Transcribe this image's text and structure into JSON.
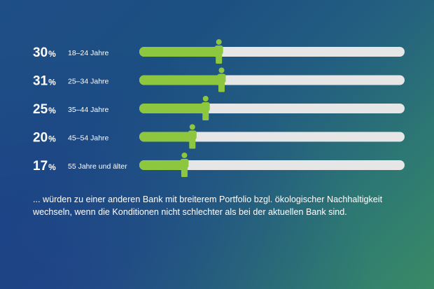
{
  "chart_data": {
    "type": "bar",
    "orientation": "horizontal",
    "categories": [
      "18–24 Jahre",
      "25–34 Jahre",
      "35–44 Jahre",
      "45–54 Jahre",
      "55 Jahre und älter"
    ],
    "values": [
      30,
      31,
      25,
      20,
      17
    ],
    "value_labels": [
      "30",
      "31",
      "25",
      "20",
      "17"
    ],
    "unit": "%",
    "xlim": [
      0,
      100
    ],
    "colors": {
      "fill": "#8dc63f",
      "track": "#e6e6e6",
      "text": "#ffffff"
    },
    "marker_icon": "person-icon"
  },
  "caption": "... würden zu einer anderen Bank mit breiterem Portfolio bzgl. ökologischer Nachhaltig­keit wechseln, wenn die Konditionen nicht schlechter als bei der aktuellen Bank sind."
}
